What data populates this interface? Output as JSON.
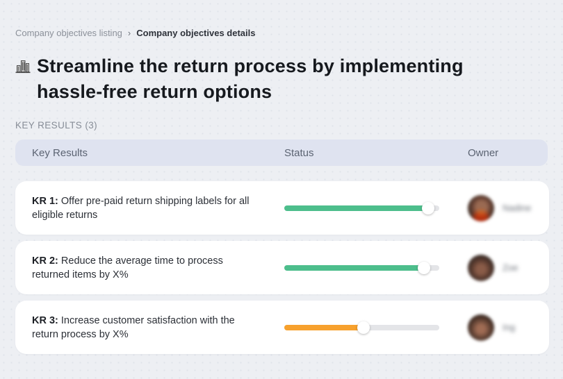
{
  "breadcrumb": {
    "back_label": "Company objectives listing",
    "separator": "›",
    "current_label": "Company objectives details"
  },
  "objective": {
    "icon": "buildings-icon",
    "title_lines": [
      "Streamline the return process by implementing",
      "hassle-free return options"
    ]
  },
  "section": {
    "label": "KEY RESULTS (3)"
  },
  "table": {
    "headers": [
      "Key Results",
      "Status",
      "Owner"
    ],
    "rows": [
      {
        "kr_label": "KR 1:",
        "kr_text": "Offer pre-paid return shipping labels for all eligible returns",
        "progress_percent": 93,
        "bar_color": "#4dbe8c",
        "owner": "Nadine"
      },
      {
        "kr_label": "KR 2:",
        "kr_text": "Reduce the average time to process returned items by X%",
        "progress_percent": 90,
        "bar_color": "#4dbe8c",
        "owner": "Zoe"
      },
      {
        "kr_label": "KR 3:",
        "kr_text": "Increase customer satisfaction with the return process by X%",
        "progress_percent": 51,
        "bar_color": "#f7a12d",
        "owner": "Ing"
      }
    ]
  },
  "colors": {
    "page_background": "#edeff3",
    "card_background": "#ffffff",
    "table_header_background": "#dfe3f0",
    "progress_green": "#4dbe8c",
    "progress_orange": "#f7a12d",
    "progress_track": "#e4e5e8"
  }
}
